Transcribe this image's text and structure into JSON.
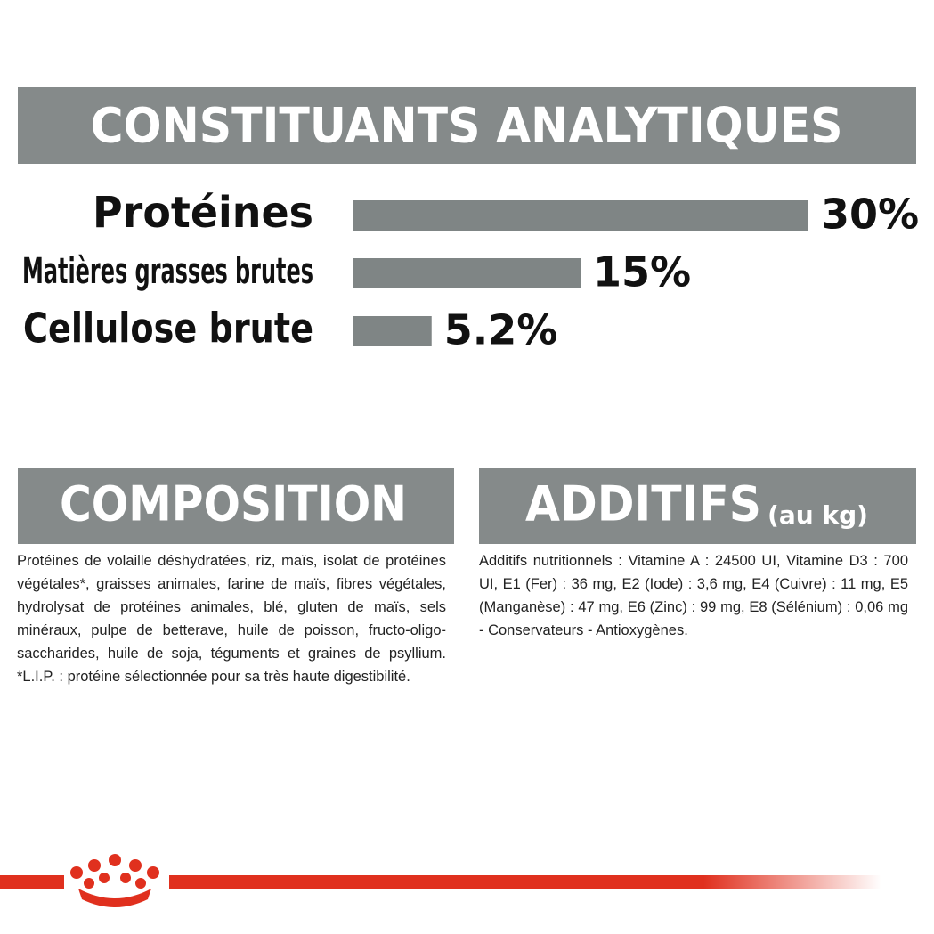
{
  "chart_data": {
    "type": "bar",
    "title": "CONSTITUANTS ANALYTIQUES",
    "categories": [
      "Protéines",
      "Matières grasses brutes",
      "Cellulose brute"
    ],
    "values": [
      30,
      15,
      5.2
    ],
    "value_labels": [
      "30%",
      "15%",
      "5.2%"
    ],
    "color": "#7f8585"
  },
  "composition": {
    "title": "COMPOSITION",
    "text": "Protéines de volaille déshydratées, riz, maïs, isolat de protéines végétales*, graisses animales, farine de maïs, fibres végétales, hydrolysat de protéines animales, blé, gluten de maïs, sels minéraux, pulpe de betterave, huile de poisson, fructo-oligo-saccharides, huile de soja, téguments et graines de psyllium. *L.I.P. : protéine sélectionnée pour sa très haute digestibilité."
  },
  "additifs": {
    "title": "ADDITIFS",
    "subtitle": "(au kg)",
    "text": "Additifs nutritionnels : Vitamine A : 24500 UI, Vitamine D3 : 700 UI, E1 (Fer) : 36 mg, E2 (Iode) : 3,6 mg, E4 (Cuivre) : 11 mg, E5 (Manganèse) : 47 mg, E6 (Zinc) : 99 mg, E8 (Sélénium) : 0,06 mg - Conservateurs - Antioxygènes."
  }
}
